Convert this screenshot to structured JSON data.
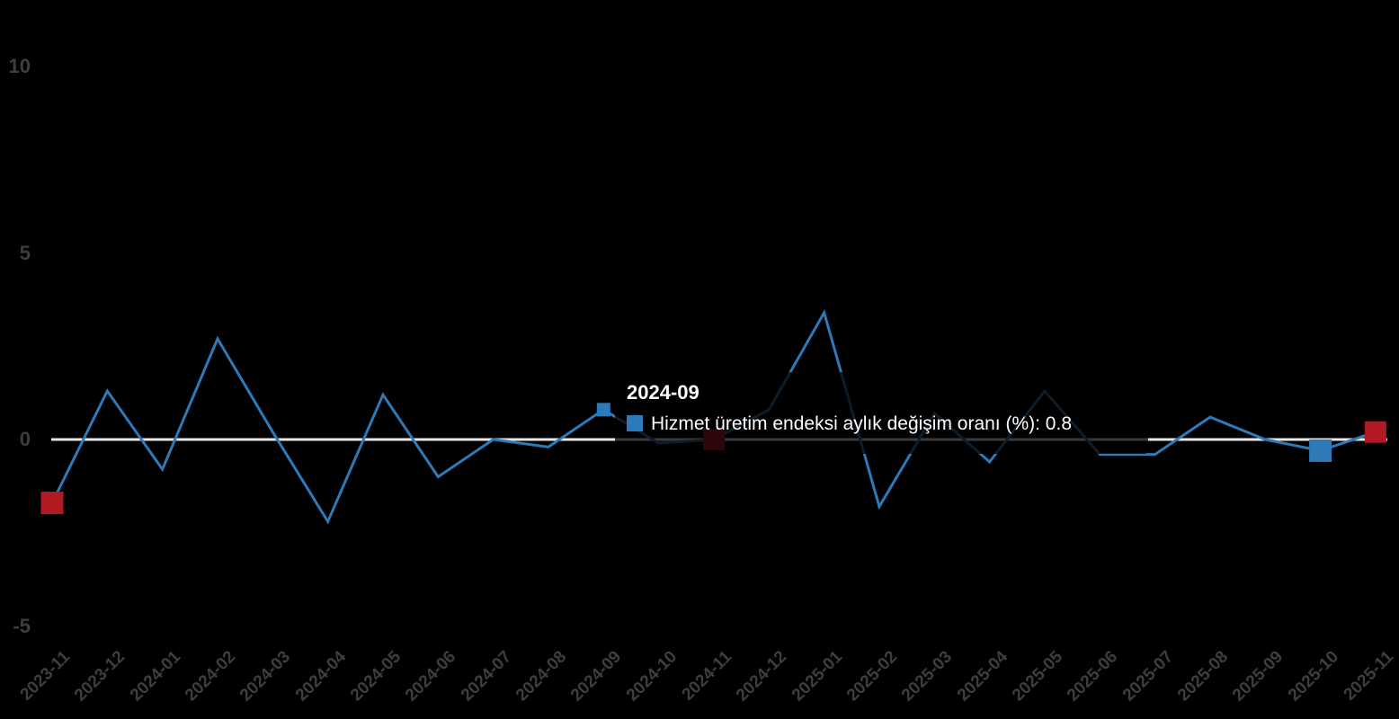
{
  "chart_data": {
    "type": "line",
    "title": "",
    "x": [
      "2023-11",
      "2023-12",
      "2024-01",
      "2024-02",
      "2024-03",
      "2024-04",
      "2024-05",
      "2024-06",
      "2024-07",
      "2024-08",
      "2024-09",
      "2024-10",
      "2024-11",
      "2024-12",
      "2025-01",
      "2025-02",
      "2025-03",
      "2025-04",
      "2025-05",
      "2025-06",
      "2025-07",
      "2025-08",
      "2025-09",
      "2025-10",
      "2025-11"
    ],
    "series": [
      {
        "name": "Hizmet üretim endeksi aylık değişim oranı (%)",
        "values": [
          -1.7,
          1.3,
          -0.8,
          2.7,
          0.2,
          -2.2,
          1.2,
          -1.0,
          0.0,
          -0.2,
          0.8,
          -0.1,
          0.0,
          0.8,
          3.4,
          -1.8,
          0.7,
          -0.6,
          1.3,
          -0.4,
          -0.4,
          0.6,
          0.0,
          -0.3,
          0.2
        ]
      }
    ],
    "ylim": [
      -5,
      10
    ],
    "ytick_labels": [
      "10",
      "5",
      "0",
      "-5"
    ],
    "ytick_values": [
      10,
      5,
      0,
      -5
    ],
    "grid": "zero-line-only",
    "legend_position": "none"
  },
  "tooltip": {
    "title": "2024-09",
    "text": "Hizmet üretim endeksi aylık değişim oranı (%): 0.8",
    "hovered_month": "2024-09",
    "hovered_value": "0.8"
  },
  "highlight_markers": [
    {
      "month": "2023-11",
      "color_key": "red",
      "size": 25
    },
    {
      "month": "2024-09",
      "color_key": "blue",
      "size": 15
    },
    {
      "month": "2024-11",
      "color_key": "red",
      "size": 24
    },
    {
      "month": "2025-10",
      "color_key": "blue",
      "size": 25
    },
    {
      "month": "2025-11",
      "color_key": "red",
      "size": 24
    }
  ],
  "colors": {
    "background": "#000000",
    "line": "#2e7ab8",
    "blue": "#2e7ab8",
    "red": "#b11a22",
    "zero_line": "#e9e9e9",
    "axis_label": "#3e3e3e",
    "tooltip_text": "#ffffff"
  }
}
